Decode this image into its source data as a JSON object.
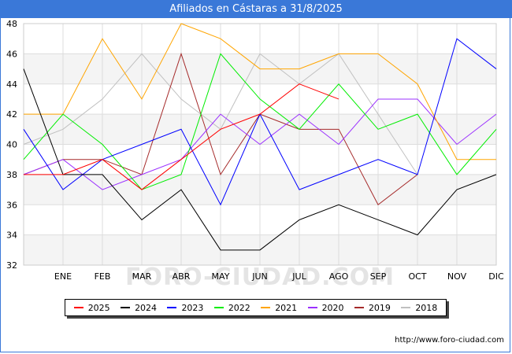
{
  "title": "Afiliados en Cástaras a 31/8/2025",
  "watermark": "FORO-CIUDAD.COM",
  "source": "http://www.foro-ciudad.com",
  "chart_data": {
    "type": "line",
    "title": "Afiliados en Cástaras a 31/8/2025",
    "categories": [
      "",
      "ENE",
      "FEB",
      "MAR",
      "ABR",
      "MAY",
      "JUN",
      "JUL",
      "AGO",
      "SEP",
      "OCT",
      "NOV",
      "DIC"
    ],
    "ylim": [
      32,
      48
    ],
    "yticks": [
      32,
      34,
      36,
      38,
      40,
      42,
      44,
      46,
      48
    ],
    "grid": true,
    "legend_position": "bottom",
    "series": [
      {
        "name": "2025",
        "color": "#ff0000",
        "values": [
          38,
          38,
          39,
          37,
          39,
          41,
          42,
          44,
          43,
          null,
          null,
          null,
          null
        ]
      },
      {
        "name": "2024",
        "color": "#000000",
        "values": [
          45,
          38,
          38,
          35,
          37,
          33,
          33,
          35,
          36,
          35,
          34,
          37,
          38
        ]
      },
      {
        "name": "2023",
        "color": "#0000ff",
        "values": [
          41,
          37,
          39,
          40,
          41,
          36,
          42,
          37,
          38,
          39,
          38,
          47,
          45
        ]
      },
      {
        "name": "2022",
        "color": "#00ee00",
        "values": [
          39,
          42,
          40,
          37,
          38,
          46,
          43,
          41,
          44,
          41,
          42,
          38,
          41
        ]
      },
      {
        "name": "2021",
        "color": "#ffa500",
        "values": [
          42,
          42,
          47,
          43,
          48,
          47,
          45,
          45,
          46,
          46,
          44,
          39,
          39
        ]
      },
      {
        "name": "2020",
        "color": "#9b30ff",
        "values": [
          38,
          39,
          37,
          38,
          39,
          42,
          40,
          42,
          40,
          43,
          43,
          40,
          42
        ]
      },
      {
        "name": "2019",
        "color": "#a52a2a",
        "values": [
          38,
          39,
          39,
          38,
          46,
          38,
          42,
          41,
          41,
          36,
          38,
          null,
          null
        ]
      },
      {
        "name": "2018",
        "color": "#c0c0c0",
        "values": [
          40,
          41,
          43,
          46,
          43,
          41,
          46,
          44,
          46,
          42,
          38,
          null,
          null
        ]
      }
    ]
  }
}
